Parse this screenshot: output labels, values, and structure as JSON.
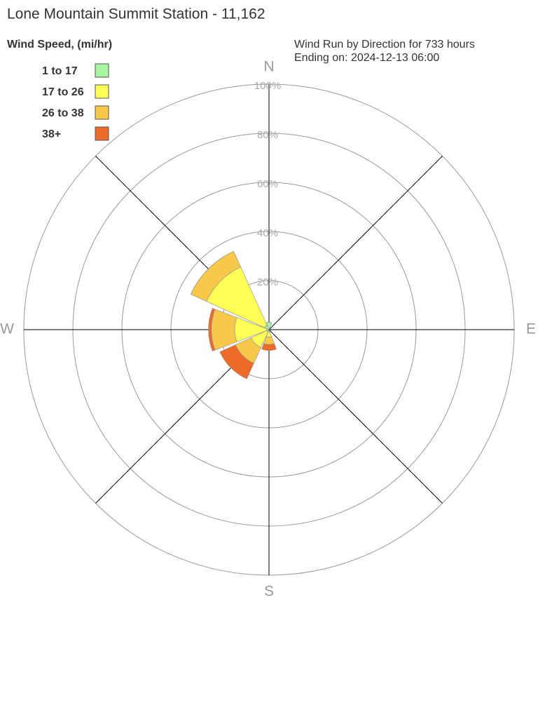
{
  "chart_data": {
    "type": "wind-rose",
    "title": "Lone Mountain Summit Station - 11,162",
    "legend_title": "Wind Speed, (mi/hr)",
    "annotations": [
      "Wind Run by Direction for 733 hours",
      "Ending on: 2024-12-13 06:00"
    ],
    "categories": [
      "N",
      null,
      "E",
      null,
      "S",
      null,
      "W",
      null
    ],
    "series": [
      {
        "name": "1 to 17",
        "color": "#aaf5a0",
        "values": [
          3,
          0,
          0,
          0,
          1,
          1,
          1,
          2
        ]
      },
      {
        "name": "17 to 26",
        "color": "#ffff55",
        "values": [
          0,
          0,
          0,
          0,
          2,
          7,
          13,
          26
        ]
      },
      {
        "name": "26 to 38",
        "color": "#f8c848",
        "values": [
          0,
          0,
          0,
          0,
          3,
          7,
          9.5,
          7
        ]
      },
      {
        "name": "38+",
        "color": "#ee6a28",
        "values": [
          0,
          0,
          0,
          0,
          2.5,
          7,
          1.2,
          0
        ]
      }
    ],
    "rlim": [
      0,
      100
    ],
    "rticks": [
      {
        "value": 20,
        "label": "20%"
      },
      {
        "value": 40,
        "label": "40%"
      },
      {
        "value": 60,
        "label": "60%"
      },
      {
        "value": 80,
        "label": "80%"
      },
      {
        "value": 100,
        "label": "100%"
      }
    ]
  }
}
